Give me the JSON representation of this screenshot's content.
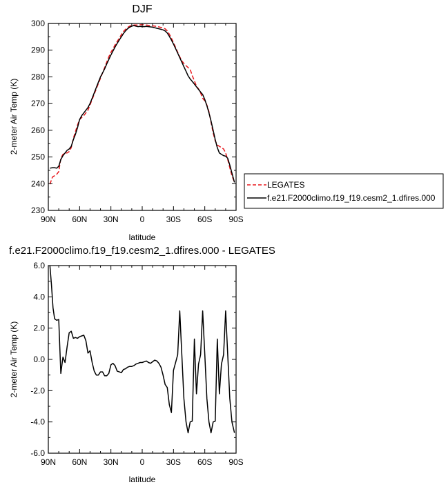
{
  "chart_data": [
    {
      "type": "line",
      "title": "DJF",
      "xlabel": "latitude",
      "ylabel": "2-meter Air Temp (K)",
      "xlim": [
        90,
        -90
      ],
      "ylim": [
        230,
        300
      ],
      "x_ticks": [
        {
          "value": 90,
          "label": "90N"
        },
        {
          "value": 60,
          "label": "60N"
        },
        {
          "value": 30,
          "label": "30N"
        },
        {
          "value": 0,
          "label": "0"
        },
        {
          "value": -30,
          "label": "30S"
        },
        {
          "value": -60,
          "label": "60S"
        },
        {
          "value": -90,
          "label": "90S"
        }
      ],
      "y_ticks": [
        {
          "value": 230,
          "label": "230"
        },
        {
          "value": 240,
          "label": "240"
        },
        {
          "value": 250,
          "label": "250"
        },
        {
          "value": 260,
          "label": "260"
        },
        {
          "value": 270,
          "label": "270"
        },
        {
          "value": 280,
          "label": "280"
        },
        {
          "value": 290,
          "label": "290"
        },
        {
          "value": 300,
          "label": "300"
        }
      ],
      "grid": false,
      "legend_position": "outside right",
      "series": [
        {
          "name": "LEGATES",
          "color": "#e8161b",
          "dash": "dashed",
          "x": [
            88.5,
            86,
            84,
            82,
            80,
            78,
            76,
            74,
            72,
            70,
            68,
            66,
            64,
            62,
            60,
            58,
            56,
            54,
            52,
            50,
            48,
            46,
            44,
            42,
            40,
            38,
            36,
            34,
            32,
            30,
            28,
            26,
            24,
            22,
            20,
            18,
            16,
            14,
            12,
            10,
            8,
            6,
            4,
            2,
            0,
            -2,
            -4,
            -6,
            -8,
            -10,
            -12,
            -14,
            -16,
            -18,
            -20,
            -22,
            -24,
            -26,
            -28,
            -30,
            -32,
            -34,
            -36,
            -38,
            -40,
            -42,
            -44,
            -46,
            -48,
            -50,
            -52,
            -54,
            -56,
            -58,
            -60,
            -62,
            -64,
            -66,
            -68,
            -70,
            -72,
            -74,
            -76,
            -78,
            -80,
            -82,
            -84,
            -86,
            -88.5
          ],
          "values": [
            239.8,
            242.5,
            243.0,
            243.5,
            244.5,
            249.5,
            251.0,
            251.5,
            251.5,
            252.0,
            253.5,
            257.0,
            259.5,
            262.0,
            264.0,
            264.8,
            265.5,
            266.5,
            267.5,
            269.5,
            271.5,
            273.5,
            275.5,
            277.5,
            279.5,
            281.5,
            283.5,
            285.5,
            287.5,
            289.2,
            290.5,
            292.0,
            293.2,
            294.5,
            295.8,
            297.0,
            297.8,
            298.5,
            299.0,
            299.2,
            299.4,
            299.4,
            299.4,
            299.5,
            299.5,
            299.5,
            299.4,
            299.3,
            299.2,
            299.1,
            299.0,
            298.9,
            298.7,
            298.5,
            298.3,
            298.0,
            297.2,
            296.0,
            294.5,
            292.8,
            291.0,
            289.2,
            287.5,
            286.0,
            285.0,
            284.2,
            283.5,
            282.8,
            280.5,
            278.5,
            276.5,
            275.5,
            274.0,
            272.0,
            271.0,
            269.5,
            267.0,
            263.0,
            259.0,
            256.0,
            254.5,
            254.0,
            253.5,
            253.0,
            251.5,
            249.0,
            246.0,
            243.0,
            240.5
          ]
        },
        {
          "name": "f.e21.F2000climo.f19_f19.cesm2_1.dfires.000",
          "color": "#000000",
          "dash": "solid",
          "x": [
            88.5,
            86,
            84,
            82,
            80,
            78,
            76,
            74,
            72,
            70,
            68,
            66,
            64,
            62,
            60,
            58,
            56,
            54,
            52,
            50,
            48,
            46,
            44,
            42,
            40,
            38,
            36,
            34,
            32,
            30,
            28,
            26,
            24,
            22,
            20,
            18,
            16,
            14,
            12,
            10,
            8,
            6,
            4,
            2,
            0,
            -2,
            -4,
            -6,
            -8,
            -10,
            -12,
            -14,
            -16,
            -18,
            -20,
            -22,
            -24,
            -26,
            -28,
            -30,
            -32,
            -34,
            -36,
            -38,
            -40,
            -42,
            -44,
            -46,
            -48,
            -50,
            -52,
            -54,
            -56,
            -58,
            -60,
            -62,
            -64,
            -66,
            -68,
            -70,
            -72,
            -74,
            -76,
            -78,
            -80,
            -82,
            -84,
            -86,
            -88.5
          ],
          "values": [
            245.8,
            246.0,
            246.0,
            245.8,
            246.5,
            249.0,
            250.5,
            251.5,
            252.5,
            253.0,
            254.0,
            256.5,
            258.5,
            261.0,
            264.0,
            265.5,
            266.5,
            267.5,
            268.5,
            270.0,
            272.0,
            274.0,
            276.0,
            278.0,
            280.0,
            281.5,
            283.0,
            284.8,
            286.5,
            288.2,
            289.7,
            291.2,
            292.5,
            293.8,
            295.0,
            296.2,
            297.2,
            298.0,
            298.6,
            299.0,
            299.2,
            299.0,
            298.8,
            298.9,
            298.8,
            298.8,
            298.9,
            298.8,
            298.7,
            298.6,
            298.4,
            298.2,
            298.0,
            297.8,
            297.6,
            297.2,
            296.4,
            295.2,
            293.8,
            292.3,
            290.6,
            288.9,
            287.2,
            285.5,
            283.8,
            282.1,
            280.4,
            279.2,
            278.3,
            277.3,
            276.3,
            275.3,
            274.3,
            273.4,
            271.5,
            269.2,
            266.5,
            263.5,
            260.0,
            256.5,
            253.5,
            251.5,
            251.0,
            250.5,
            250.3,
            249.5,
            247.0,
            244.0,
            240.5
          ]
        }
      ]
    },
    {
      "type": "line",
      "title": "f.e21.F2000climo.f19_f19.cesm2_1.dfires.000 - LEGATES",
      "xlabel": "latitude",
      "ylabel": "2-meter Air Temp (K)",
      "xlim": [
        90,
        -90
      ],
      "ylim": [
        -6.0,
        6.0
      ],
      "x_ticks": [
        {
          "value": 90,
          "label": "90N"
        },
        {
          "value": 60,
          "label": "60N"
        },
        {
          "value": 30,
          "label": "30N"
        },
        {
          "value": 0,
          "label": "0"
        },
        {
          "value": -30,
          "label": "30S"
        },
        {
          "value": -60,
          "label": "60S"
        },
        {
          "value": -90,
          "label": "90S"
        }
      ],
      "y_ticks": [
        {
          "value": -6.0,
          "label": "-6.0"
        },
        {
          "value": -4.0,
          "label": "-4.0"
        },
        {
          "value": -2.0,
          "label": "-2.0"
        },
        {
          "value": 0.0,
          "label": "0.0"
        },
        {
          "value": 2.0,
          "label": "2.0"
        },
        {
          "value": 4.0,
          "label": "4.0"
        },
        {
          "value": 6.0,
          "label": "6.0"
        }
      ],
      "grid": false,
      "series": [
        {
          "color": "#000000",
          "dash": "solid",
          "x": [
            88.5,
            87,
            85.5,
            84,
            82,
            80,
            78,
            76,
            74,
            72,
            70,
            68,
            66,
            64,
            62,
            60,
            58,
            56,
            54,
            52,
            50,
            48,
            46,
            44,
            42,
            40,
            38,
            36,
            34,
            32,
            30,
            28,
            26,
            24,
            22,
            20,
            18,
            16,
            14,
            12,
            10,
            8,
            6,
            4,
            2,
            0,
            -2,
            -4,
            -6,
            -8,
            -10,
            -12,
            -14,
            -16,
            -18,
            -20,
            -22,
            -24,
            -26,
            -28,
            -30,
            -32,
            -34,
            -36,
            -38,
            -40,
            -42,
            -44,
            -46,
            -48,
            -50,
            -52,
            -54,
            -56,
            -58,
            -60,
            -62,
            -64,
            -66,
            -68,
            -70,
            -72,
            -74,
            -76,
            -78,
            -80,
            -82,
            -84,
            -86,
            -88.5
          ],
          "values": [
            6.0,
            4.8,
            3.3,
            2.6,
            2.5,
            2.55,
            -0.9,
            0.15,
            -0.2,
            0.8,
            1.7,
            1.8,
            1.35,
            1.4,
            1.35,
            1.45,
            1.5,
            1.55,
            1.2,
            0.4,
            0.55,
            -0.2,
            -0.75,
            -1.0,
            -1.0,
            -0.8,
            -0.8,
            -1.05,
            -1.05,
            -0.9,
            -0.35,
            -0.25,
            -0.4,
            -0.75,
            -0.8,
            -0.85,
            -0.65,
            -0.6,
            -0.5,
            -0.45,
            -0.45,
            -0.4,
            -0.3,
            -0.25,
            -0.2,
            -0.2,
            -0.15,
            -0.1,
            -0.2,
            -0.25,
            -0.15,
            -0.05,
            -0.1,
            -0.25,
            -0.5,
            -1.0,
            -1.6,
            -1.8,
            -2.9,
            -3.4,
            -0.7,
            -0.2,
            0.3,
            3.1,
            0.3,
            -2.5,
            -4.0,
            -4.7,
            -4.0,
            -3.95,
            1.3,
            -2.2,
            -0.3,
            0.3,
            3.1,
            0.3,
            -2.5,
            -4.0,
            -4.7,
            -4.0,
            -3.95,
            1.3,
            -2.2,
            -0.3,
            0.3,
            3.1,
            0.3,
            -2.5,
            -4.0,
            -4.7
          ]
        }
      ]
    }
  ]
}
